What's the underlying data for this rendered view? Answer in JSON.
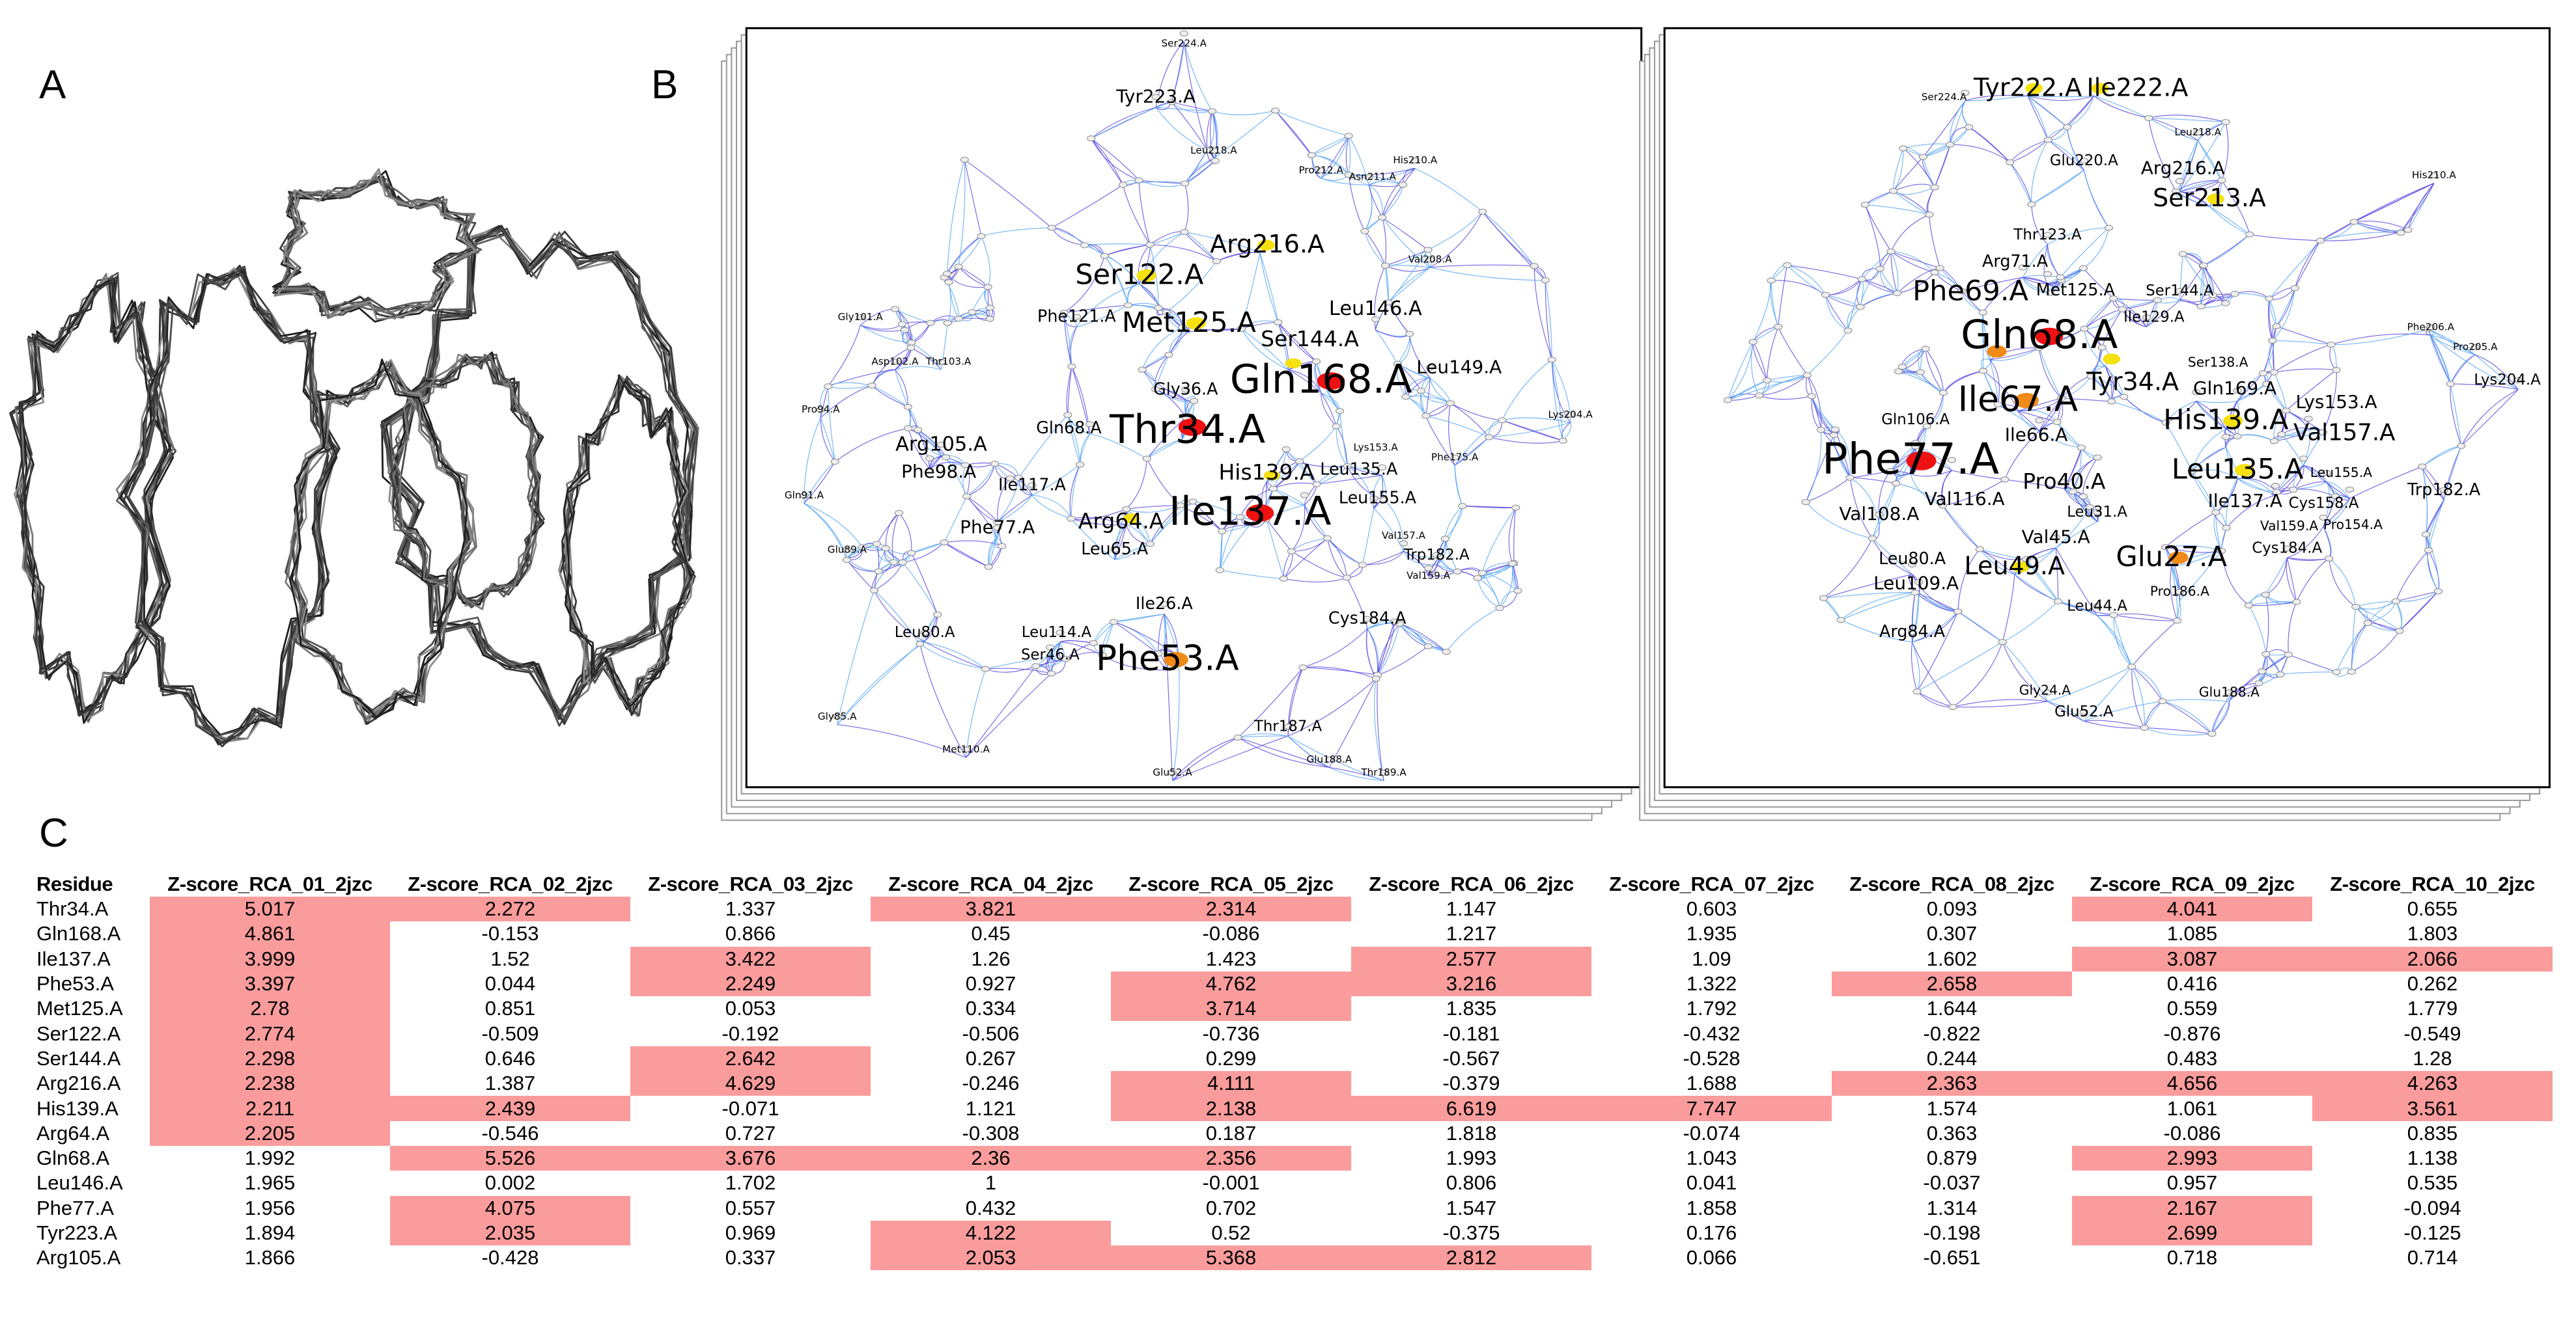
{
  "labels": {
    "a": "A",
    "b": "B",
    "c": "C"
  },
  "colors": {
    "highlight": "#fa9c9c",
    "edge_light": "#59a8f5",
    "edge_dark": "#5a4be0",
    "red": "#ee1111",
    "yellow": "#f5e010",
    "orange": "#f08a18"
  },
  "panel_b": {
    "nodes": [
      {
        "label": "Ser224.A"
      },
      {
        "label": "Tyr223.A"
      },
      {
        "label": "Arg216.A",
        "color": "#f5e010"
      },
      {
        "label": "Ser122.A",
        "color": "#f5e010"
      },
      {
        "label": "Met125.A",
        "color": "#f5e010"
      },
      {
        "label": "Phe121.A"
      },
      {
        "label": "Leu146.A"
      },
      {
        "label": "Ser144.A",
        "color": "#f5e010"
      },
      {
        "label": "Leu149.A"
      },
      {
        "label": "Gln168.A",
        "color": "#ee1111"
      },
      {
        "label": "Gly36.A"
      },
      {
        "label": "Thr34.A",
        "color": "#ee1111"
      },
      {
        "label": "Gln68.A"
      },
      {
        "label": "Arg105.A"
      },
      {
        "label": "Phe98.A"
      },
      {
        "label": "Ile117.A"
      },
      {
        "label": "His139.A",
        "color": "#f5e010"
      },
      {
        "label": "Leu135.A"
      },
      {
        "label": "Leu155.A"
      },
      {
        "label": "Phe77.A"
      },
      {
        "label": "Arg64.A",
        "color": "#f5e010"
      },
      {
        "label": "Ile137.A",
        "color": "#ee1111"
      },
      {
        "label": "Leu65.A"
      },
      {
        "label": "Ile26.A"
      },
      {
        "label": "Cys184.A"
      },
      {
        "label": "Trp182.A"
      },
      {
        "label": "Leu80.A"
      },
      {
        "label": "Leu114.A"
      },
      {
        "label": "Ser46.A"
      },
      {
        "label": "Phe53.A",
        "color": "#f08a18"
      },
      {
        "label": "Thr187.A"
      },
      {
        "label": "Lys204.A"
      },
      {
        "label": "Leu218.A"
      },
      {
        "label": "Pro212.A"
      },
      {
        "label": "Asn211.A"
      },
      {
        "label": "His210.A"
      },
      {
        "label": "Val208.A"
      },
      {
        "label": "Gly101.A"
      },
      {
        "label": "Asp102.A"
      },
      {
        "label": "Thr103.A"
      },
      {
        "label": "Pro94.A"
      },
      {
        "label": "Gln91.A"
      },
      {
        "label": "Glu89.A"
      },
      {
        "label": "Gly85.A"
      },
      {
        "label": "Met110.A"
      },
      {
        "label": "Glu52.A"
      },
      {
        "label": "Glu188.A"
      },
      {
        "label": "Thr189.A"
      },
      {
        "label": "Val157.A"
      },
      {
        "label": "Val159.A"
      },
      {
        "label": "Phe175.A"
      },
      {
        "label": "Lys153.A"
      }
    ]
  },
  "panel_c": {
    "nodes": [
      {
        "label": "Ser224.A"
      },
      {
        "label": "Tyr222.A",
        "color": "#f5e010"
      },
      {
        "label": "Ile222.A",
        "color": "#f5e010"
      },
      {
        "label": "Glu220.A"
      },
      {
        "label": "Arg216.A"
      },
      {
        "label": "Ser213.A",
        "color": "#f5e010"
      },
      {
        "label": "Thr123.A"
      },
      {
        "label": "Arg71.A"
      },
      {
        "label": "Met125.A"
      },
      {
        "label": "Ser144.A"
      },
      {
        "label": "Ile129.A"
      },
      {
        "label": "Gln68.A",
        "color": "#ee1111"
      },
      {
        "label": "Phe69.A",
        "color": "#f08a18"
      },
      {
        "label": "Tyr34.A",
        "color": "#f5e010"
      },
      {
        "label": "Ile67.A",
        "color": "#f08a18"
      },
      {
        "label": "Ile66.A"
      },
      {
        "label": "Gln169.A"
      },
      {
        "label": "His139.A",
        "color": "#f5e010"
      },
      {
        "label": "Ile137.A"
      },
      {
        "label": "Lys153.A"
      },
      {
        "label": "Phe77.A",
        "color": "#ee1111"
      },
      {
        "label": "Val116.A"
      },
      {
        "label": "Leu135.A",
        "color": "#f5e010"
      },
      {
        "label": "Val157.A"
      },
      {
        "label": "Pro40.A"
      },
      {
        "label": "Cys158.A"
      },
      {
        "label": "Trp182.A"
      },
      {
        "label": "Val108.A"
      },
      {
        "label": "Val45.A"
      },
      {
        "label": "Glu27.A",
        "color": "#f08a18"
      },
      {
        "label": "Leu49.A",
        "color": "#f5e010"
      },
      {
        "label": "Leu109.A"
      },
      {
        "label": "Arg84.A"
      },
      {
        "label": "Leu80.A"
      },
      {
        "label": "Cys184.A"
      },
      {
        "label": "Glu188.A"
      },
      {
        "label": "Glu52.A"
      },
      {
        "label": "Lys204.A"
      },
      {
        "label": "Pro186.A"
      },
      {
        "label": "Gly24.A"
      },
      {
        "label": "Leu155.A"
      },
      {
        "label": "Pro154.A"
      },
      {
        "label": "Val159.A"
      },
      {
        "label": "Ser138.A"
      },
      {
        "label": "Gln106.A"
      },
      {
        "label": "Leu31.A"
      },
      {
        "label": "Leu44.A"
      },
      {
        "label": "Pro205.A"
      },
      {
        "label": "Phe206.A"
      },
      {
        "label": "His210.A"
      },
      {
        "label": "Leu218.A"
      }
    ]
  },
  "table": {
    "headers": [
      "Residue",
      "Z-score_RCA_01_2jzc",
      "Z-score_RCA_02_2jzc",
      "Z-score_RCA_03_2jzc",
      "Z-score_RCA_04_2jzc",
      "Z-score_RCA_05_2jzc",
      "Z-score_RCA_06_2jzc",
      "Z-score_RCA_07_2jzc",
      "Z-score_RCA_08_2jzc",
      "Z-score_RCA_09_2jzc",
      "Z-score_RCA_10_2jzc"
    ],
    "rows": [
      [
        "Thr34.A",
        "5.017",
        "2.272",
        "1.337",
        "3.821",
        "2.314",
        "1.147",
        "0.603",
        "0.093",
        "4.041",
        "0.655"
      ],
      [
        "Gln168.A",
        "4.861",
        "-0.153",
        "0.866",
        "0.45",
        "-0.086",
        "1.217",
        "1.935",
        "0.307",
        "1.085",
        "1.803"
      ],
      [
        "Ile137.A",
        "3.999",
        "1.52",
        "3.422",
        "1.26",
        "1.423",
        "2.577",
        "1.09",
        "1.602",
        "3.087",
        "2.066"
      ],
      [
        "Phe53.A",
        "3.397",
        "0.044",
        "2.249",
        "0.927",
        "4.762",
        "3.216",
        "1.322",
        "2.658",
        "0.416",
        "0.262"
      ],
      [
        "Met125.A",
        "2.78",
        "0.851",
        "0.053",
        "0.334",
        "3.714",
        "1.835",
        "1.792",
        "1.644",
        "0.559",
        "1.779"
      ],
      [
        "Ser122.A",
        "2.774",
        "-0.509",
        "-0.192",
        "-0.506",
        "-0.736",
        "-0.181",
        "-0.432",
        "-0.822",
        "-0.876",
        "-0.549"
      ],
      [
        "Ser144.A",
        "2.298",
        "0.646",
        "2.642",
        "0.267",
        "0.299",
        "-0.567",
        "-0.528",
        "0.244",
        "0.483",
        "1.28"
      ],
      [
        "Arg216.A",
        "2.238",
        "1.387",
        "4.629",
        "-0.246",
        "4.111",
        "-0.379",
        "1.688",
        "2.363",
        "4.656",
        "4.263"
      ],
      [
        "His139.A",
        "2.211",
        "2.439",
        "-0.071",
        "1.121",
        "2.138",
        "6.619",
        "7.747",
        "1.574",
        "1.061",
        "3.561"
      ],
      [
        "Arg64.A",
        "2.205",
        "-0.546",
        "0.727",
        "-0.308",
        "0.187",
        "1.818",
        "-0.074",
        "0.363",
        "-0.086",
        "0.835"
      ],
      [
        "Gln68.A",
        "1.992",
        "5.526",
        "3.676",
        "2.36",
        "2.356",
        "1.993",
        "1.043",
        "0.879",
        "2.993",
        "1.138"
      ],
      [
        "Leu146.A",
        "1.965",
        "0.002",
        "1.702",
        "1",
        "-0.001",
        "0.806",
        "0.041",
        "-0.037",
        "0.957",
        "0.535"
      ],
      [
        "Phe77.A",
        "1.956",
        "4.075",
        "0.557",
        "0.432",
        "0.702",
        "1.547",
        "1.858",
        "1.314",
        "2.167",
        "-0.094"
      ],
      [
        "Tyr223.A",
        "1.894",
        "2.035",
        "0.969",
        "4.122",
        "0.52",
        "-0.375",
        "0.176",
        "-0.198",
        "2.699",
        "-0.125"
      ],
      [
        "Arg105.A",
        "1.866",
        "-0.428",
        "0.337",
        "2.053",
        "5.368",
        "2.812",
        "0.066",
        "-0.651",
        "0.718",
        "0.714"
      ]
    ],
    "highlight_threshold": 2
  }
}
